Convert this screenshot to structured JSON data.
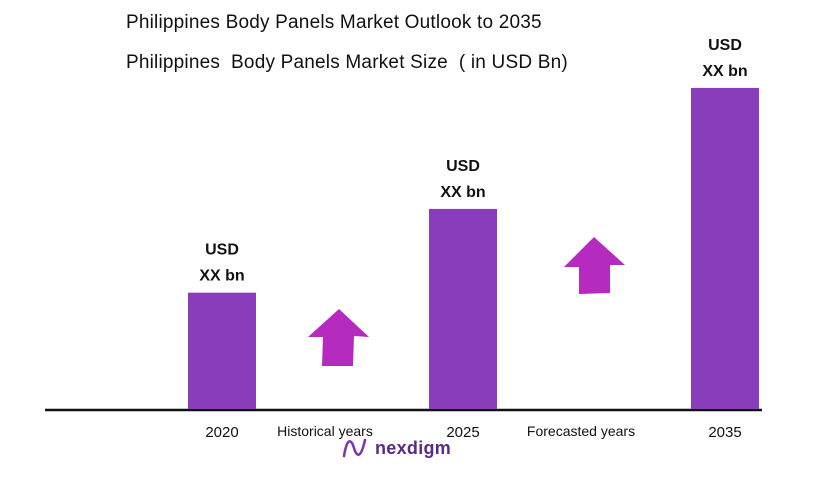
{
  "header": {
    "title": "Philippines Body Panels Market Outlook to 2035",
    "subtitle": "Philippines  Body Panels Market Size  ( in USD Bn)"
  },
  "chart_data": {
    "type": "bar",
    "title": "Philippines Body Panels Market Outlook to 2035",
    "subtitle": "Philippines  Body Panels Market Size  ( in USD Bn)",
    "categories": [
      "2020",
      "2025",
      "2035"
    ],
    "values": [
      1.0,
      1.72,
      2.76
    ],
    "bar_labels": [
      [
        "USD",
        "XX bn"
      ],
      [
        "USD",
        "XX bn"
      ],
      [
        "USD",
        "XX bn"
      ]
    ],
    "ylim": [
      0,
      3
    ],
    "grid": false,
    "period_labels": [
      "Historical years",
      "Forecasted years"
    ],
    "colors": {
      "bar": "#8a3dbb",
      "arrow": "#b52bc0",
      "axis": "#111111"
    }
  },
  "brand": {
    "name": "nexdigm",
    "color": "#5a2a8a"
  }
}
